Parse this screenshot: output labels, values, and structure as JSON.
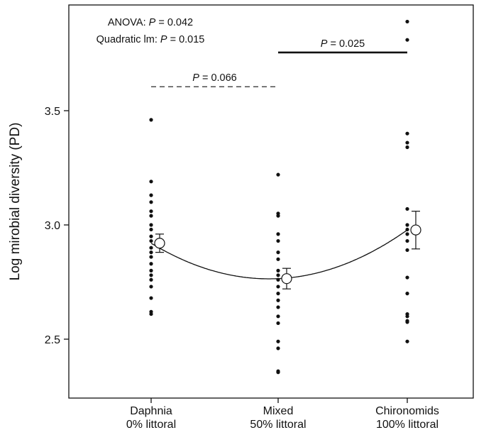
{
  "chart_data": {
    "type": "scatter",
    "title": "",
    "ylabel": "Log mirobial diversity (PD)",
    "xlabel": "",
    "ylim": [
      2.3,
      3.95
    ],
    "yticks": [
      "2.5",
      "3.0",
      "3.5"
    ],
    "grid": false,
    "categories": [
      {
        "line1": "Daphnia",
        "line2": "0% littoral"
      },
      {
        "line1": "Mixed",
        "line2": "50% littoral"
      },
      {
        "line1": "Chironomids",
        "line2": "100% littoral"
      }
    ],
    "points": [
      [
        3.46,
        3.19,
        3.13,
        3.1,
        3.06,
        3.04,
        3.0,
        2.98,
        2.95,
        2.93,
        2.9,
        2.88,
        2.86,
        2.83,
        2.8,
        2.78,
        2.76,
        2.73,
        2.68,
        2.62,
        2.61
      ],
      [
        3.22,
        3.05,
        3.04,
        2.96,
        2.93,
        2.88,
        2.85,
        2.8,
        2.78,
        2.76,
        2.73,
        2.7,
        2.67,
        2.64,
        2.6,
        2.57,
        2.49,
        2.46,
        2.36,
        2.355
      ],
      [
        3.89,
        3.81,
        3.4,
        3.36,
        3.34,
        3.07,
        3.0,
        2.98,
        2.96,
        2.93,
        2.89,
        2.77,
        2.7,
        2.61,
        2.6,
        2.58,
        2.575,
        2.49
      ]
    ],
    "means": [
      {
        "mean": 2.92,
        "lower": 2.88,
        "upper": 2.96
      },
      {
        "mean": 2.765,
        "lower": 2.72,
        "upper": 2.81
      },
      {
        "mean": 2.978,
        "lower": 2.895,
        "upper": 3.06
      }
    ],
    "fit": {
      "type": "quadratic",
      "through": [
        2.92,
        2.765,
        2.978
      ]
    },
    "annotations": {
      "anova_prefix": "ANOVA: ",
      "anova_p_symbol": "P",
      "anova_p_value": " = 0.042",
      "quad_prefix": "Quadratic lm: ",
      "quad_p_symbol": "P",
      "quad_p_value": " = 0.015"
    },
    "comparisons": [
      {
        "from": 0,
        "to": 1,
        "y": 3.605,
        "style": "dashed",
        "p_symbol": "P",
        "p_value": " = 0.066"
      },
      {
        "from": 1,
        "to": 2,
        "y": 3.755,
        "style": "solid",
        "p_symbol": "P",
        "p_value": " = 0.025"
      }
    ]
  }
}
